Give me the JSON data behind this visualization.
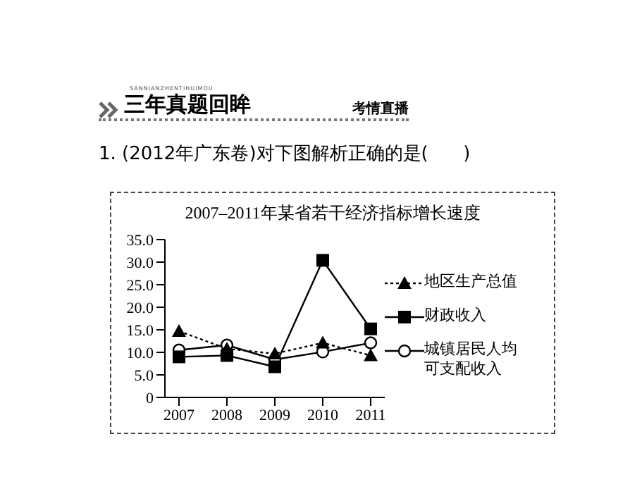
{
  "chart_data": {
    "type": "line",
    "title": "2007–2011年某省若干经济指标增长速度",
    "annotations": [
      "SANNIANZHENTIHUIMOU",
      "三年真题回眸",
      "考情直播",
      "1. (2012年广东卷)对下图解析正确的是(      )"
    ],
    "categories": [
      "2007",
      "2008",
      "2009",
      "2010",
      "2011"
    ],
    "series": [
      {
        "name": "地区生产总值",
        "color": "#000000",
        "marker": "triangle",
        "line_style": "dotted",
        "values": [
          14.7,
          10.8,
          9.7,
          12.1,
          9.3
        ]
      },
      {
        "name": "财政收入",
        "color": "#000000",
        "marker": "square",
        "line_style": "solid",
        "values": [
          9.0,
          9.3,
          6.8,
          30.4,
          15.2
        ]
      },
      {
        "name": "城镇居民人均可支配收入",
        "color": "#000000",
        "marker": "circle",
        "line_style": "solid",
        "values": [
          10.5,
          11.6,
          8.4,
          10.1,
          12.1
        ]
      }
    ],
    "ylim": [
      0,
      35
    ],
    "yticks": [
      0,
      {
        "value": 5,
        "label": "5.0"
      },
      {
        "value": 10,
        "label": "10.0"
      },
      {
        "value": 15,
        "label": "15.0"
      },
      {
        "value": 20,
        "label": "20.0"
      },
      {
        "value": 25,
        "label": "25.0"
      },
      {
        "value": 30,
        "label": "30.0"
      },
      {
        "value": 35,
        "label": "35.0"
      }
    ],
    "grid": false,
    "legend": "right"
  }
}
